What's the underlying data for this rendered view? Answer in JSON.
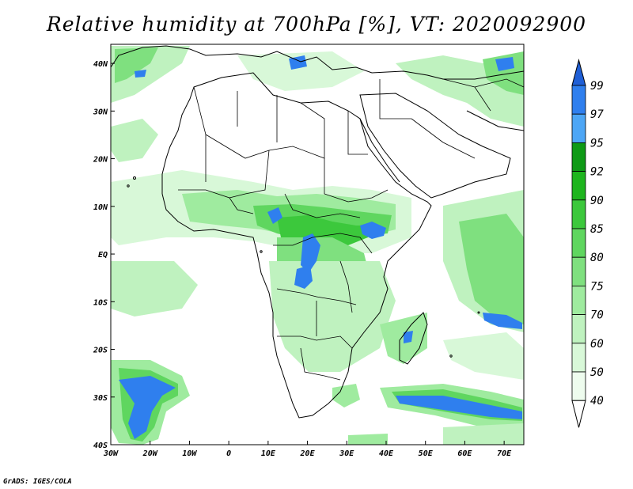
{
  "title": "Relative humidity at 700hPa [%], VT: 2020092900",
  "credit": "GrADS: IGES/COLA",
  "map": {
    "lon_range": [
      -30,
      75
    ],
    "lat_range": [
      -40,
      44
    ],
    "x_ticks": [
      "30W",
      "20W",
      "10W",
      "0",
      "10E",
      "20E",
      "30E",
      "40E",
      "50E",
      "60E",
      "70E"
    ],
    "y_ticks": [
      "40N",
      "30N",
      "20N",
      "10N",
      "EQ",
      "10S",
      "20S",
      "30S",
      "40S"
    ]
  },
  "colorbar": {
    "labels": [
      "99",
      "97",
      "95",
      "92",
      "90",
      "85",
      "80",
      "75",
      "70",
      "60",
      "50",
      "40"
    ],
    "colors": [
      "#1f5fd6",
      "#2f7fee",
      "#4da6f5",
      "#0e9a16",
      "#1eb51e",
      "#3cc83c",
      "#5fd65f",
      "#7fe07f",
      "#9feb9f",
      "#bff2bf",
      "#d8f8d8",
      "#eefcee"
    ]
  }
}
